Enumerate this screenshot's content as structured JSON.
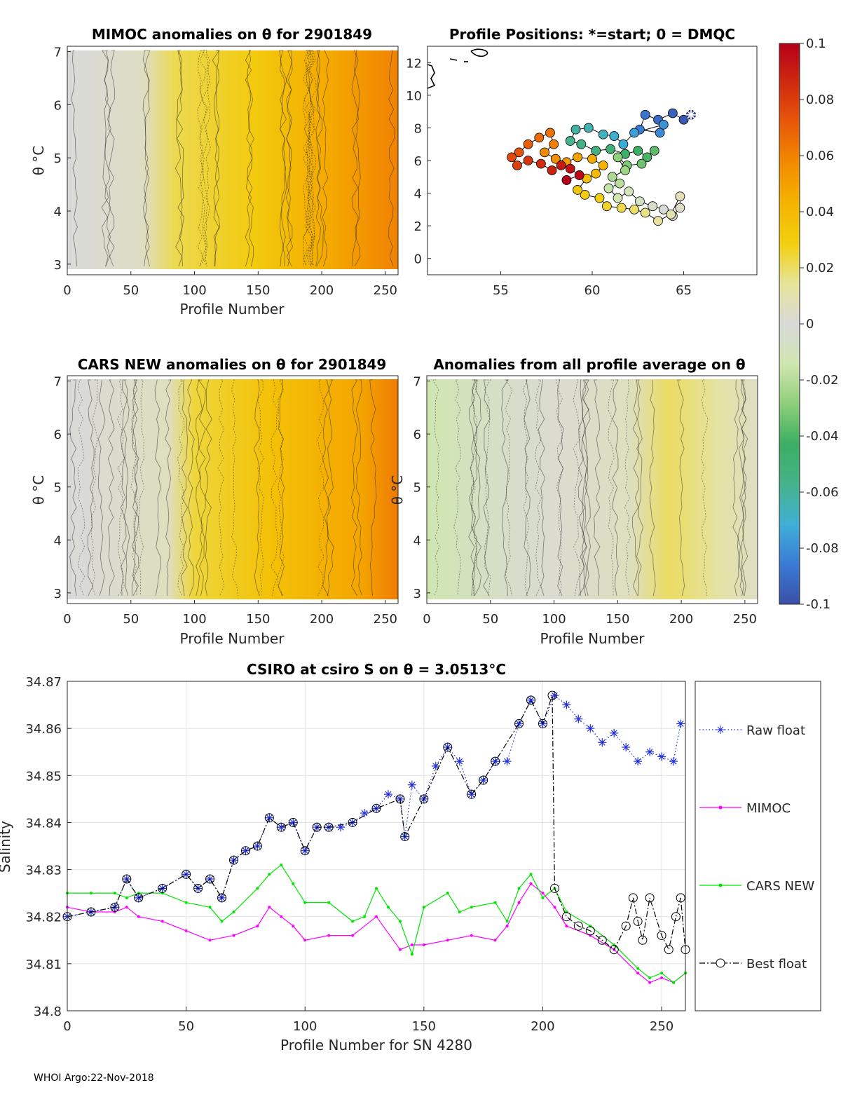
{
  "footer": "WHOI Argo:22-Nov-2018",
  "colors": {
    "raw_float": "#1f2fe0",
    "mimoc": "#ff00ff",
    "cars_new": "#00e600",
    "best_float": "#000000",
    "colormap": [
      "#3b4fa6",
      "#3a7bd5",
      "#3fb0d6",
      "#46b38a",
      "#3cae63",
      "#8fcf7a",
      "#d0e6b0",
      "#d9d9d9",
      "#e6e49a",
      "#f2d00f",
      "#f5b400",
      "#f28c00",
      "#e85a0a",
      "#d02a0f",
      "#b5001a"
    ]
  },
  "colorbar": {
    "ticks": [
      "0.1",
      "0.08",
      "0.06",
      "0.04",
      "0.02",
      "0",
      "-0.02",
      "-0.04",
      "-0.06",
      "-0.08",
      "-0.1"
    ]
  },
  "chart_data": [
    {
      "id": "mimoc_anomaly",
      "type": "heatmap",
      "title": "MIMOC anomalies on θ  for 2901849",
      "xlabel": "Profile Number",
      "ylabel": "θ °C",
      "xlim": [
        0,
        260
      ],
      "ylim": [
        2.8,
        7.1
      ],
      "xticks": [
        "0",
        "50",
        "100",
        "150",
        "200",
        "250"
      ],
      "yticks": [
        "7",
        "6",
        "5",
        "4",
        "3"
      ],
      "anomaly_stops": [
        [
          0,
          0.0
        ],
        [
          60,
          0.005
        ],
        [
          85,
          0.022
        ],
        [
          150,
          0.032
        ],
        [
          210,
          0.048
        ],
        [
          260,
          0.06
        ]
      ]
    },
    {
      "id": "profile_positions",
      "type": "scatter",
      "title": "Profile Positions: *=start; 0 = DMQC",
      "xlim": [
        51,
        69
      ],
      "ylim": [
        -1,
        13
      ],
      "xticks": [
        "55",
        "60",
        "65"
      ],
      "yticks": [
        "12",
        "10",
        "8",
        "6",
        "4",
        "2",
        "0"
      ],
      "track": [
        [
          65.4,
          8.8
        ],
        [
          65.0,
          8.5
        ],
        [
          64.4,
          8.9
        ],
        [
          63.6,
          8.5
        ],
        [
          62.9,
          8.8
        ],
        [
          62.6,
          7.9
        ],
        [
          63.7,
          7.7
        ],
        [
          63.9,
          8.2
        ],
        [
          62.3,
          7.7
        ],
        [
          61.7,
          7.0
        ],
        [
          61.2,
          7.5
        ],
        [
          60.6,
          7.6
        ],
        [
          59.8,
          8.0
        ],
        [
          59.1,
          7.9
        ],
        [
          58.8,
          7.2
        ],
        [
          59.4,
          7.0
        ],
        [
          60.2,
          6.6
        ],
        [
          61.0,
          6.7
        ],
        [
          61.8,
          6.4
        ],
        [
          62.5,
          6.6
        ],
        [
          63.0,
          6.2
        ],
        [
          63.4,
          6.6
        ],
        [
          62.7,
          5.8
        ],
        [
          61.9,
          5.7
        ],
        [
          61.4,
          6.2
        ],
        [
          61.8,
          5.4
        ],
        [
          61.1,
          5.0
        ],
        [
          61.5,
          4.6
        ],
        [
          60.9,
          4.3
        ],
        [
          61.4,
          3.7
        ],
        [
          62.0,
          4.1
        ],
        [
          62.6,
          3.5
        ],
        [
          63.3,
          3.2
        ],
        [
          63.9,
          3.0
        ],
        [
          64.4,
          2.6
        ],
        [
          64.8,
          3.1
        ],
        [
          64.8,
          3.8
        ],
        [
          64.3,
          2.7
        ],
        [
          63.6,
          2.3
        ],
        [
          62.9,
          2.8
        ],
        [
          62.3,
          3.0
        ],
        [
          61.6,
          3.1
        ],
        [
          60.8,
          3.2
        ],
        [
          60.4,
          3.7
        ],
        [
          59.6,
          3.9
        ],
        [
          59.2,
          4.2
        ],
        [
          59.7,
          4.9
        ],
        [
          60.2,
          5.2
        ],
        [
          60.6,
          5.7
        ],
        [
          60.0,
          6.1
        ],
        [
          59.2,
          6.2
        ],
        [
          58.6,
          5.9
        ],
        [
          58.0,
          6.1
        ],
        [
          57.4,
          6.5
        ],
        [
          57.9,
          7.0
        ],
        [
          57.7,
          7.7
        ],
        [
          57.1,
          7.4
        ],
        [
          56.5,
          7.0
        ],
        [
          56.0,
          6.5
        ],
        [
          55.6,
          6.2
        ],
        [
          55.9,
          5.7
        ],
        [
          56.5,
          6.0
        ],
        [
          57.2,
          5.8
        ],
        [
          57.8,
          5.4
        ],
        [
          58.3,
          5.7
        ],
        [
          58.8,
          5.5
        ],
        [
          59.3,
          5.1
        ],
        [
          58.6,
          4.8
        ]
      ]
    },
    {
      "id": "cars_anomaly",
      "type": "heatmap",
      "title": "CARS NEW anomalies on θ for 2901849",
      "xlabel": "Profile Number",
      "ylabel": "θ °C",
      "xlim": [
        0,
        260
      ],
      "ylim": [
        2.8,
        7.1
      ],
      "xticks": [
        "0",
        "50",
        "100",
        "150",
        "200",
        "250"
      ],
      "yticks": [
        "7",
        "6",
        "5",
        "4",
        "3"
      ],
      "anomaly_stops": [
        [
          0,
          0.0
        ],
        [
          80,
          0.006
        ],
        [
          100,
          0.024
        ],
        [
          160,
          0.036
        ],
        [
          230,
          0.048
        ],
        [
          260,
          0.062
        ]
      ]
    },
    {
      "id": "profile_average_anomaly",
      "type": "heatmap",
      "title": "Anomalies from all profile average on θ",
      "xlabel": "Profile Number",
      "ylabel": "θ °C",
      "xlim": [
        0,
        260
      ],
      "ylim": [
        2.8,
        7.1
      ],
      "xticks": [
        "0",
        "50",
        "100",
        "150",
        "200",
        "250"
      ],
      "yticks": [
        "7",
        "6",
        "5",
        "4",
        "3"
      ],
      "anomaly_stops": [
        [
          0,
          -0.014
        ],
        [
          60,
          -0.006
        ],
        [
          100,
          0.002
        ],
        [
          160,
          0.006
        ],
        [
          190,
          0.02
        ],
        [
          230,
          0.012
        ],
        [
          260,
          0.005
        ]
      ]
    },
    {
      "id": "salinity_timeseries",
      "type": "line",
      "title": "CSIRO at csiro S on θ = 3.0513°C",
      "xlabel": "Profile Number for SN 4280",
      "ylabel": "Salinity",
      "xlim": [
        0,
        260
      ],
      "ylim": [
        34.8,
        34.87
      ],
      "xticks": [
        "0",
        "50",
        "100",
        "150",
        "200",
        "250"
      ],
      "yticks": [
        "34.87",
        "34.86",
        "34.85",
        "34.84",
        "34.83",
        "34.82",
        "34.81",
        "34.8"
      ],
      "series": [
        {
          "name": "Raw float",
          "x": [
            0,
            10,
            20,
            25,
            30,
            40,
            50,
            55,
            60,
            65,
            70,
            75,
            80,
            85,
            90,
            95,
            100,
            105,
            110,
            115,
            120,
            125,
            130,
            135,
            140,
            142,
            145,
            150,
            155,
            160,
            165,
            170,
            175,
            180,
            185,
            190,
            195,
            200,
            205,
            210,
            215,
            220,
            225,
            230,
            235,
            240,
            245,
            250,
            255,
            258
          ],
          "y": [
            34.82,
            34.821,
            34.822,
            34.828,
            34.824,
            34.826,
            34.829,
            34.826,
            34.828,
            34.824,
            34.832,
            34.834,
            34.835,
            34.841,
            34.839,
            34.84,
            34.834,
            34.839,
            34.839,
            34.839,
            34.84,
            34.842,
            34.843,
            34.846,
            34.845,
            34.837,
            34.848,
            34.845,
            34.852,
            34.856,
            34.853,
            34.846,
            34.849,
            34.853,
            34.853,
            34.861,
            34.866,
            34.861,
            34.867,
            34.865,
            34.862,
            34.86,
            34.857,
            34.859,
            34.856,
            34.853,
            34.855,
            34.854,
            34.853,
            34.861
          ]
        },
        {
          "name": "MIMOC",
          "x": [
            0,
            10,
            20,
            25,
            30,
            40,
            50,
            60,
            70,
            80,
            85,
            90,
            95,
            100,
            110,
            120,
            130,
            140,
            145,
            150,
            160,
            170,
            180,
            185,
            190,
            195,
            200,
            205,
            210,
            220,
            230,
            240,
            245,
            250,
            255,
            260
          ],
          "y": [
            34.822,
            34.821,
            34.821,
            34.822,
            34.82,
            34.819,
            34.817,
            34.815,
            34.816,
            34.818,
            34.822,
            34.82,
            34.818,
            34.815,
            34.816,
            34.816,
            34.82,
            34.813,
            34.814,
            34.814,
            34.815,
            34.816,
            34.815,
            34.818,
            34.823,
            34.827,
            34.825,
            34.822,
            34.818,
            34.816,
            34.813,
            34.808,
            34.806,
            34.807,
            34.806,
            34.808
          ]
        },
        {
          "name": "CARS NEW",
          "x": [
            0,
            10,
            20,
            25,
            30,
            40,
            50,
            60,
            65,
            70,
            80,
            85,
            90,
            95,
            100,
            110,
            120,
            125,
            130,
            135,
            140,
            145,
            150,
            160,
            165,
            170,
            180,
            185,
            190,
            195,
            200,
            205,
            210,
            220,
            230,
            240,
            245,
            250,
            255,
            260
          ],
          "y": [
            34.825,
            34.825,
            34.825,
            34.824,
            34.825,
            34.825,
            34.823,
            34.822,
            34.819,
            34.821,
            34.826,
            34.829,
            34.831,
            34.827,
            34.823,
            34.823,
            34.819,
            34.82,
            34.826,
            34.822,
            34.819,
            34.812,
            34.822,
            34.825,
            34.821,
            34.822,
            34.823,
            34.819,
            34.826,
            34.829,
            34.824,
            34.826,
            34.821,
            34.818,
            34.814,
            34.809,
            34.807,
            34.808,
            34.806,
            34.808
          ]
        },
        {
          "name": "Best float",
          "x": [
            0,
            10,
            20,
            25,
            30,
            40,
            50,
            55,
            60,
            65,
            70,
            75,
            80,
            85,
            90,
            95,
            100,
            105,
            110,
            120,
            130,
            140,
            142,
            150,
            160,
            170,
            175,
            180,
            190,
            195,
            200,
            204,
            205,
            210,
            215,
            220,
            225,
            230,
            235,
            238,
            240,
            242,
            245,
            250,
            253,
            256,
            258,
            260
          ],
          "y": [
            34.82,
            34.821,
            34.822,
            34.828,
            34.824,
            34.826,
            34.829,
            34.826,
            34.828,
            34.824,
            34.832,
            34.834,
            34.835,
            34.841,
            34.839,
            34.84,
            34.834,
            34.839,
            34.839,
            34.84,
            34.843,
            34.845,
            34.837,
            34.845,
            34.856,
            34.846,
            34.849,
            34.853,
            34.861,
            34.866,
            34.861,
            34.867,
            34.826,
            34.82,
            34.818,
            34.817,
            34.815,
            34.813,
            34.818,
            34.824,
            34.819,
            34.815,
            34.824,
            34.816,
            34.813,
            34.82,
            34.824,
            34.813
          ]
        }
      ],
      "legend": [
        "Raw float",
        "MIMOC",
        "CARS NEW",
        "Best float"
      ]
    }
  ]
}
